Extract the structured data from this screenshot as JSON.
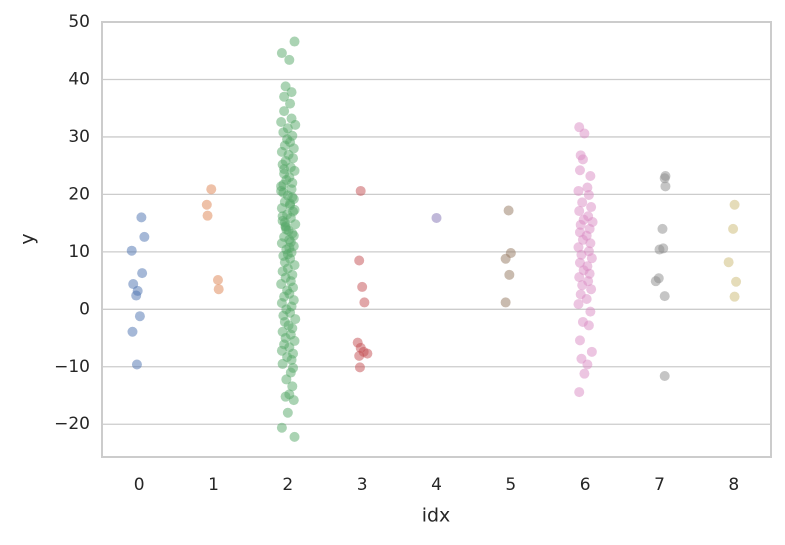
{
  "chart_data": {
    "type": "scatter",
    "x_label": "idx",
    "y_label": "y",
    "xlim": [
      -0.5,
      8.5
    ],
    "xticks": [
      0,
      1,
      2,
      3,
      4,
      5,
      6,
      7,
      8
    ],
    "ylim": [
      -25.7,
      50
    ],
    "yticks": [
      {
        "value": -20,
        "label": "−20"
      },
      {
        "value": -10,
        "label": "−10"
      },
      0,
      10,
      20,
      30,
      40,
      50
    ],
    "grid": true,
    "alpha": 0.5,
    "series": [
      {
        "color": "#4c72b0",
        "x": [
          0.03,
          0.07,
          -0.1,
          0.04,
          -0.08,
          -0.02,
          -0.04,
          0.01,
          -0.09,
          -0.03
        ],
        "values": [
          16,
          12.6,
          10.2,
          6.3,
          4.4,
          3.2,
          2.4,
          -1.2,
          -3.9,
          -9.6
        ]
      },
      {
        "color": "#dd8452",
        "x": [
          0.97,
          0.91,
          0.92,
          1.06,
          1.07
        ],
        "values": [
          20.9,
          18.2,
          16.3,
          5.1,
          3.5
        ]
      },
      {
        "color": "#55a868",
        "x": [
          2.09,
          1.92,
          2.02,
          1.97,
          2.05,
          1.95,
          2.03,
          2.09,
          1.92,
          2.0,
          2.08,
          2.02,
          1.97,
          2.06,
          1.98,
          2.04,
          2.07,
          1.93,
          1.95,
          2.05,
          1.91,
          2.1,
          2.0,
          1.94,
          2.06,
          1.99,
          2.03,
          1.96,
          2.08,
          1.92,
          2.01,
          2.07,
          1.97,
          1.93,
          2.04,
          2.09,
          1.95,
          2.02,
          1.98,
          2.06,
          1.91,
          2.05,
          1.94,
          2.0,
          2.08,
          1.96,
          2.03,
          1.92,
          2.07,
          1.99,
          2.04,
          1.93,
          2.1,
          1.97,
          2.01,
          2.06,
          1.95,
          2.02,
          1.92,
          2.08,
          1.98,
          2.05,
          1.94,
          2.03,
          1.96,
          2.09,
          2.0,
          1.93,
          2.06,
          1.97,
          2.04,
          1.91,
          2.07,
          1.99,
          2.02,
          1.95,
          2.08,
          1.92,
          2.05,
          1.98,
          2.03,
          1.94,
          2.1,
          1.96,
          2.01,
          2.06,
          1.93,
          2.04,
          1.97,
          2.09,
          1.95,
          2.02,
          1.92,
          2.07,
          1.99,
          2.05,
          1.94,
          2.03,
          1.96,
          2.08,
          2.0,
          1.93,
          2.06,
          1.98,
          2.04,
          1.91,
          2.09,
          1.97,
          2.02,
          1.95
        ],
        "values": [
          46.6,
          44.6,
          43.4,
          38.8,
          37.8,
          37,
          35.8,
          -22.2,
          -20.6,
          -18,
          -15.8,
          -14.8,
          -15.2,
          -13.4,
          -12.2,
          -11,
          -10.2,
          -9.5,
          34.5,
          33.2,
          32.6,
          32.1,
          31.5,
          30.8,
          30.2,
          29.6,
          29.1,
          28.5,
          28,
          27.4,
          26.9,
          26.3,
          25.8,
          25.2,
          24.7,
          24.1,
          23.6,
          23,
          22.5,
          22,
          21.4,
          20.9,
          20.3,
          19.8,
          19.2,
          18.7,
          18.1,
          17.6,
          17,
          16.5,
          15.9,
          15.4,
          14.8,
          14.3,
          13.7,
          13.2,
          12.6,
          12.1,
          11.5,
          11,
          10.4,
          9.9,
          9.3,
          8.8,
          8.2,
          7.7,
          7.1,
          6.6,
          6,
          5.5,
          4.9,
          4.4,
          3.8,
          3.3,
          2.7,
          2.2,
          1.6,
          1.1,
          0.5,
          0,
          -0.6,
          -1.1,
          -1.7,
          -2.2,
          -2.8,
          -3.3,
          -3.9,
          -4.4,
          -5,
          -5.5,
          -6.1,
          -6.6,
          -7.2,
          -7.7,
          -8.3,
          -8.8,
          21.7,
          18.4,
          15.1,
          12.8,
          9.6,
          16.2,
          19.5,
          13.9,
          11.7,
          20.6,
          17.3,
          14.5,
          10.7,
          24.4
        ]
      },
      {
        "color": "#c44e52",
        "x": [
          2.98,
          2.96,
          3.0,
          3.03,
          2.94,
          2.98,
          3.02,
          3.07,
          2.96,
          2.97
        ],
        "values": [
          20.6,
          8.5,
          3.9,
          1.2,
          -5.8,
          -6.7,
          -7.4,
          -7.7,
          -8.1,
          -10.1
        ]
      },
      {
        "color": "#8172b3",
        "x": [
          4.0
        ],
        "values": [
          15.9
        ]
      },
      {
        "color": "#937860",
        "x": [
          4.97,
          5.0,
          4.93,
          4.98,
          4.93
        ],
        "values": [
          17.2,
          9.8,
          8.8,
          6.0,
          1.2
        ]
      },
      {
        "color": "#da8bc3",
        "x": [
          5.92,
          5.99,
          5.94,
          5.97,
          6.07,
          5.93,
          6.03,
          5.91,
          6.05,
          5.96,
          6.08,
          5.92,
          6.04,
          5.98,
          6.1,
          5.94,
          6.06,
          5.93,
          6.02,
          5.97,
          6.07,
          5.91,
          6.05,
          5.95,
          6.09,
          5.93,
          6.03,
          5.98,
          6.06,
          5.92,
          6.04,
          5.96,
          6.08,
          5.94,
          6.02,
          5.91,
          6.07,
          5.97,
          6.05,
          5.93,
          6.09,
          5.95,
          6.03,
          5.99,
          5.92
        ],
        "values": [
          31.7,
          30.6,
          26.8,
          26.1,
          23.2,
          24.2,
          21.2,
          20.6,
          19.9,
          18.6,
          17.8,
          17.1,
          16.2,
          15.6,
          15.2,
          14.7,
          14,
          13.4,
          12.8,
          12.1,
          11.5,
          10.8,
          10.1,
          9.5,
          8.9,
          8.1,
          7.5,
          6.8,
          6.2,
          5.6,
          4.9,
          4.2,
          3.5,
          2.6,
          1.8,
          0.9,
          -0.4,
          -2.2,
          -2.8,
          -5.4,
          -7.4,
          -8.6,
          -9.6,
          -11.2,
          -14.4
        ]
      },
      {
        "color": "#8c8c8c",
        "x": [
          7.08,
          7.07,
          7.08,
          7.04,
          7.05,
          7.0,
          6.99,
          6.95,
          7.07,
          7.07
        ],
        "values": [
          23.2,
          22.8,
          21.4,
          14,
          10.6,
          10.4,
          5.4,
          4.9,
          2.3,
          -11.6
        ]
      },
      {
        "color": "#ccb974",
        "x": [
          8.01,
          7.99,
          7.93,
          8.03,
          8.01
        ],
        "values": [
          18.2,
          14,
          8.2,
          4.8,
          2.2
        ]
      }
    ]
  }
}
